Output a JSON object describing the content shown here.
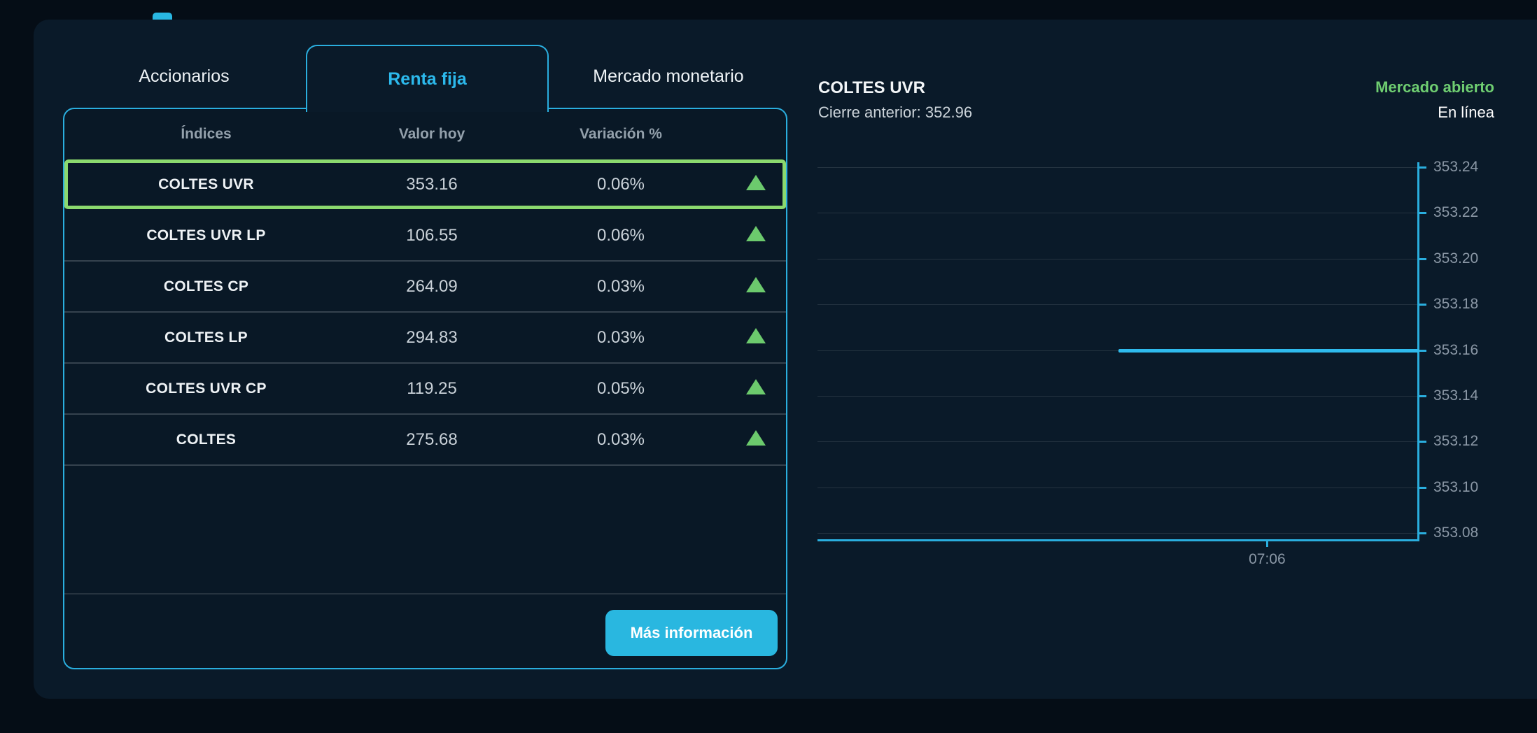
{
  "window": {
    "background": "#050d16",
    "card_background": "#0a1a29"
  },
  "tabs": [
    {
      "label": "Accionarios",
      "active": false
    },
    {
      "label": "Renta fija",
      "active": true
    },
    {
      "label": "Mercado monetario",
      "active": false
    }
  ],
  "table": {
    "headers": [
      "Índices",
      "Valor hoy",
      "Variación %"
    ],
    "rows": [
      {
        "name": "COLTES UVR",
        "value": "353.16",
        "change": "0.06%",
        "direction": "up",
        "selected": true
      },
      {
        "name": "COLTES UVR LP",
        "value": "106.55",
        "change": "0.06%",
        "direction": "up",
        "selected": false
      },
      {
        "name": "COLTES CP",
        "value": "264.09",
        "change": "0.03%",
        "direction": "up",
        "selected": false
      },
      {
        "name": "COLTES LP",
        "value": "294.83",
        "change": "0.03%",
        "direction": "up",
        "selected": false
      },
      {
        "name": "COLTES UVR CP",
        "value": "119.25",
        "change": "0.05%",
        "direction": "up",
        "selected": false
      },
      {
        "name": "COLTES",
        "value": "275.68",
        "change": "0.03%",
        "direction": "up",
        "selected": false
      }
    ],
    "more_info_label": "Más información"
  },
  "chart_header": {
    "title": "COLTES UVR",
    "previous_close": "Cierre anterior: 352.96",
    "market_status": "Mercado abierto",
    "connection_status": "En línea"
  },
  "chart_data": {
    "type": "line",
    "title": "COLTES UVR",
    "y_ticks": [
      "353.24",
      "353.22",
      "353.20",
      "353.18",
      "353.16",
      "353.14",
      "353.12",
      "353.10",
      "353.08"
    ],
    "ylim": [
      353.08,
      353.24
    ],
    "tick_step": 0.02,
    "x_ticks": [
      {
        "label": "07:06",
        "fraction": 0.747
      }
    ],
    "series": [
      {
        "name": "COLTES UVR",
        "color": "#2fbbed",
        "points": [
          {
            "x_fraction": 0.5,
            "value": 353.16
          },
          {
            "x_fraction": 1.0,
            "value": 353.16
          }
        ]
      }
    ],
    "previous_close": 352.96,
    "grid": true,
    "y_axis_position": "right",
    "legend": false
  },
  "colors": {
    "accent_cyan": "#2aaede",
    "button_cyan": "#29b7e0",
    "active_tab_cyan": "#2cb9ec",
    "positive_green": "#6cca6d",
    "selection_green": "#8bd96e",
    "market_open_green": "#6fce71"
  },
  "icons": {
    "up_triangle": "up-triangle-icon"
  }
}
